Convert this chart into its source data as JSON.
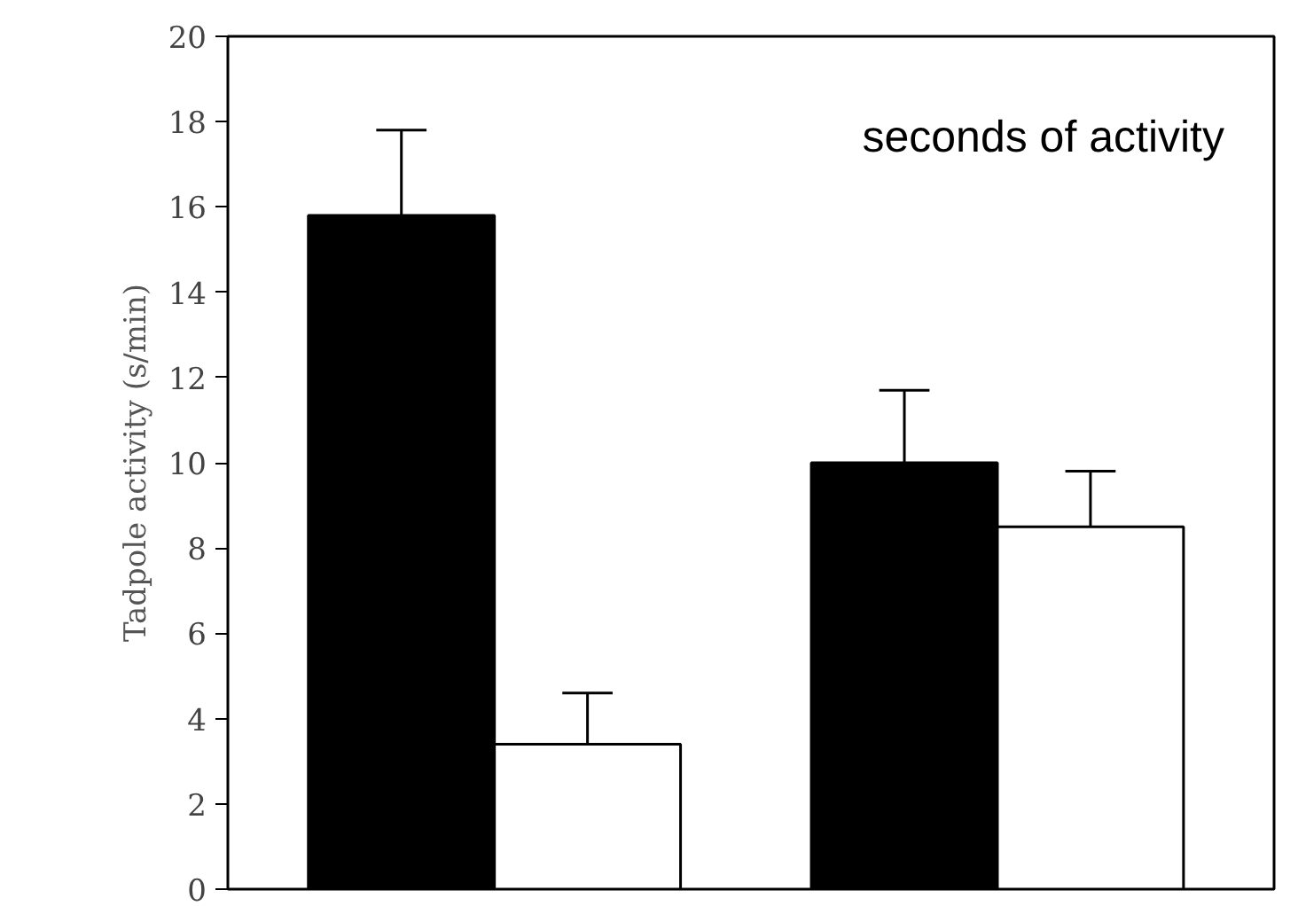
{
  "chart_data": {
    "type": "bar",
    "ylabel": "Tadpole activity (s/min)",
    "categories": [
      null,
      null
    ],
    "series": [
      {
        "color": "#000000",
        "values": [
          15.8,
          10.0
        ],
        "errors": [
          [
            15.8,
            17.8
          ],
          [
            10.0,
            11.7
          ]
        ]
      },
      {
        "color": "#ffffff",
        "values": [
          3.4,
          8.5
        ],
        "errors": [
          [
            3.4,
            4.6
          ],
          [
            8.5,
            9.8
          ]
        ]
      }
    ],
    "ylim": [
      0,
      20
    ],
    "yticks": [
      0,
      2,
      4,
      6,
      8,
      10,
      12,
      14,
      16,
      18,
      20
    ],
    "tick_labels": "y",
    "grid": false,
    "annotations": [
      "seconds of activity"
    ]
  }
}
